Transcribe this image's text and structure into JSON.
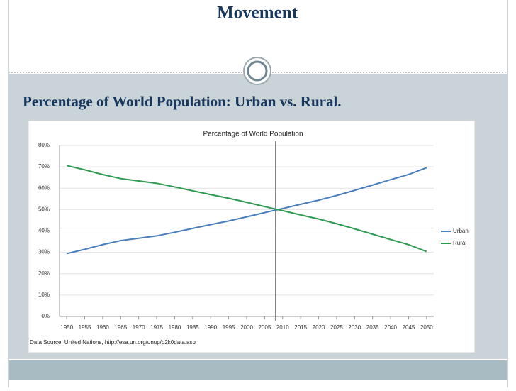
{
  "slide": {
    "title": "Movement",
    "subtitle": "Percentage of World Population: Urban vs. Rural."
  },
  "chart_data": {
    "type": "line",
    "title": "Percentage of World Population",
    "x": [
      1950,
      1955,
      1960,
      1965,
      1970,
      1975,
      1980,
      1985,
      1990,
      1995,
      2000,
      2005,
      2010,
      2015,
      2020,
      2025,
      2030,
      2035,
      2040,
      2045,
      2050
    ],
    "xticks": [
      1950,
      1955,
      1960,
      1965,
      1970,
      1975,
      1980,
      1985,
      1990,
      1995,
      2000,
      2005,
      2010,
      2015,
      2020,
      2025,
      2030,
      2035,
      2040,
      2045,
      2050
    ],
    "xlim": [
      1948,
      2052
    ],
    "series": [
      {
        "name": "Urban",
        "color": "#4a7ebb",
        "values": [
          29.4,
          31.4,
          33.6,
          35.5,
          36.6,
          37.7,
          39.4,
          41.2,
          43.0,
          44.7,
          46.6,
          48.6,
          50.5,
          52.5,
          54.4,
          56.6,
          59.0,
          61.5,
          64.0,
          66.4,
          69.6
        ]
      },
      {
        "name": "Rural",
        "color": "#2e9a52",
        "values": [
          70.6,
          68.6,
          66.4,
          64.5,
          63.4,
          62.3,
          60.6,
          58.8,
          57.0,
          55.3,
          53.4,
          51.4,
          49.5,
          47.5,
          45.6,
          43.4,
          41.0,
          38.5,
          36.0,
          33.6,
          30.4
        ]
      }
    ],
    "reference_x": 2008,
    "ylim": [
      0,
      80
    ],
    "yticks": [
      {
        "value": 0,
        "label": "0%"
      },
      {
        "value": 10,
        "label": "10%"
      },
      {
        "value": 20,
        "label": "20%"
      },
      {
        "value": 30,
        "label": "30%"
      },
      {
        "value": 40,
        "label": "40%"
      },
      {
        "value": 50,
        "label": "50%"
      },
      {
        "value": 60,
        "label": "60%"
      },
      {
        "value": 70,
        "label": "70%"
      },
      {
        "value": 80,
        "label": "80%"
      }
    ],
    "grid": true,
    "legend": "right",
    "source": "Data Source: United Nations, http://esa.un.org/unup/p2k0data.asp"
  }
}
